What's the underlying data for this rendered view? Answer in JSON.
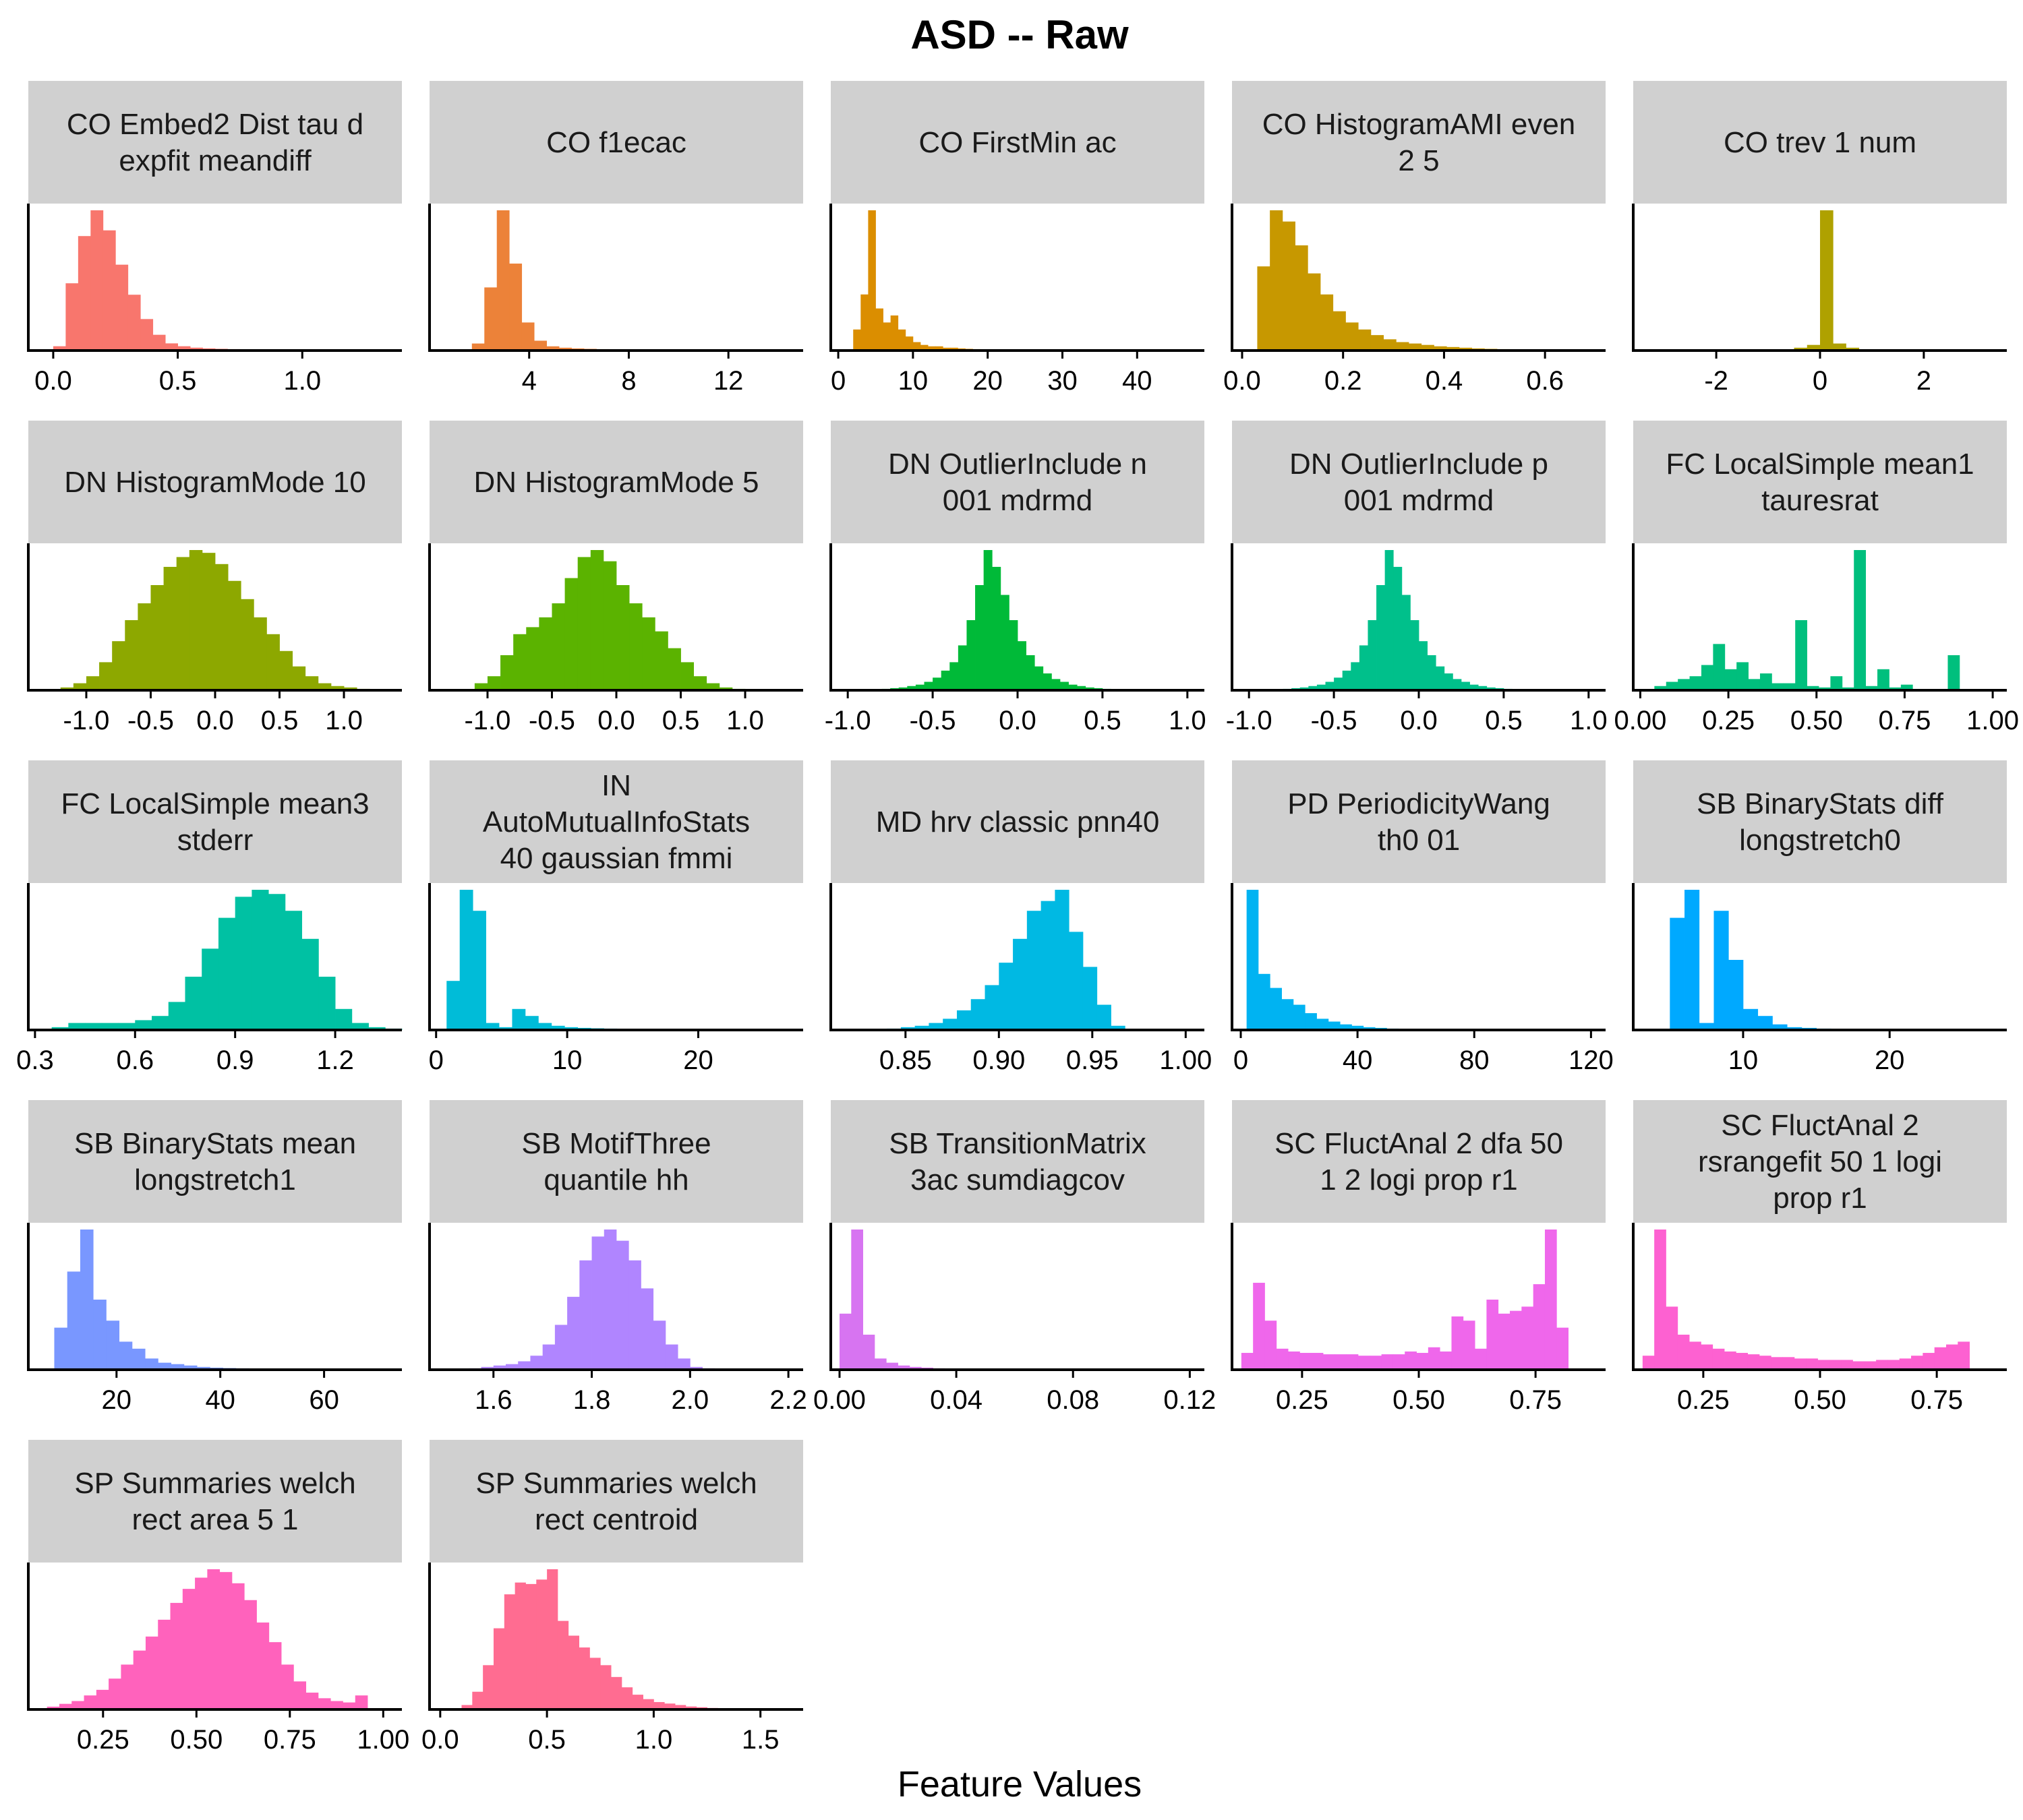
{
  "title": "ASD -- Raw",
  "xlabel": "Feature Values",
  "chart_data": [
    {
      "type": "bar",
      "strip": [
        "CO Embed2 Dist tau d",
        "expfit meandiff"
      ],
      "color": "#F8766D",
      "xlim": [
        -0.1,
        1.4
      ],
      "ticks": [
        0,
        0.5,
        1
      ],
      "tick_labels": [
        "0.0",
        "0.5",
        "1.0"
      ],
      "bins_start": 0,
      "bin_width": 0.05,
      "values": [
        0.03,
        0.47,
        0.8,
        0.98,
        0.84,
        0.6,
        0.39,
        0.22,
        0.11,
        0.05,
        0.03,
        0.02,
        0.015,
        0.012,
        0.01,
        0.008,
        0.006,
        0.005,
        0.004,
        0.003,
        0.002,
        0.002
      ]
    },
    {
      "type": "bar",
      "strip": [
        "CO f1ecac"
      ],
      "color": "#EC8239",
      "xlim": [
        0,
        15
      ],
      "ticks": [
        4,
        8,
        12
      ],
      "tick_labels": [
        "4",
        "8",
        "12"
      ],
      "bins_start": 1.7,
      "bin_width": 0.5,
      "values": [
        0.05,
        0.45,
        1,
        0.62,
        0.2,
        0.07,
        0.03,
        0.02,
        0.015,
        0.012,
        0.01,
        0.008,
        0.007,
        0.006,
        0.005,
        0.004,
        0.004,
        0.003,
        0.003,
        0.002,
        0.002,
        0.002
      ]
    },
    {
      "type": "bar",
      "strip": [
        "CO FirstMin ac"
      ],
      "color": "#DB8E00",
      "xlim": [
        -1,
        49
      ],
      "ticks": [
        0,
        10,
        20,
        30,
        40
      ],
      "tick_labels": [
        "0",
        "10",
        "20",
        "30",
        "40"
      ],
      "bins_start": 2,
      "bin_width": 1,
      "values": [
        0.15,
        0.4,
        1,
        0.3,
        0.2,
        0.25,
        0.15,
        0.1,
        0.06,
        0.04,
        0.03,
        0.03,
        0.02,
        0.02,
        0.015,
        0.012,
        0.01,
        0.008,
        0.007,
        0.006,
        0.005,
        0.004,
        0.003,
        0.003,
        0.002
      ]
    },
    {
      "type": "bar",
      "strip": [
        "CO HistogramAMI even",
        "2 5"
      ],
      "color": "#C79800",
      "xlim": [
        -0.02,
        0.72
      ],
      "ticks": [
        0,
        0.2,
        0.4,
        0.6
      ],
      "tick_labels": [
        "0.0",
        "0.2",
        "0.4",
        "0.6"
      ],
      "bins_start": 0.03,
      "bin_width": 0.025,
      "values": [
        0.6,
        1,
        0.92,
        0.75,
        0.55,
        0.4,
        0.28,
        0.2,
        0.15,
        0.11,
        0.08,
        0.06,
        0.05,
        0.04,
        0.03,
        0.025,
        0.02,
        0.015,
        0.012,
        0.01,
        0.008,
        0.006,
        0.005,
        0.004,
        0.003,
        0.002
      ]
    },
    {
      "type": "bar",
      "strip": [
        "CO trev 1 num"
      ],
      "color": "#AFA100",
      "xlim": [
        -3.6,
        3.6
      ],
      "ticks": [
        -2,
        0,
        2
      ],
      "tick_labels": [
        "-2",
        "0",
        "2"
      ],
      "bins_start": -0.5,
      "bin_width": 0.25,
      "values": [
        0.02,
        0.04,
        1,
        0.05,
        0.02
      ]
    },
    {
      "type": "bar",
      "strip": [
        "DN HistogramMode 10"
      ],
      "color": "#8DA800",
      "xlim": [
        -1.45,
        1.45
      ],
      "ticks": [
        -1,
        -0.5,
        0,
        0.5,
        1
      ],
      "tick_labels": [
        "-1.0",
        "-0.5",
        "0.0",
        "0.5",
        "1.0"
      ],
      "bins_start": -1.2,
      "bin_width": 0.1,
      "values": [
        0.02,
        0.05,
        0.1,
        0.2,
        0.35,
        0.5,
        0.62,
        0.75,
        0.88,
        0.95,
        1,
        0.98,
        0.9,
        0.78,
        0.65,
        0.52,
        0.4,
        0.28,
        0.17,
        0.1,
        0.05,
        0.03,
        0.02,
        0.01
      ]
    },
    {
      "type": "bar",
      "strip": [
        "DN HistogramMode 5"
      ],
      "color": "#5BB300",
      "xlim": [
        -1.45,
        1.45
      ],
      "ticks": [
        -1,
        -0.5,
        0,
        0.5,
        1
      ],
      "tick_labels": [
        "-1.0",
        "-0.5",
        "0.0",
        "0.5",
        "1.0"
      ],
      "bins_start": -1.1,
      "bin_width": 0.1,
      "values": [
        0.05,
        0.1,
        0.25,
        0.4,
        0.45,
        0.52,
        0.62,
        0.8,
        0.95,
        1,
        0.92,
        0.75,
        0.62,
        0.52,
        0.42,
        0.3,
        0.2,
        0.1,
        0.05,
        0.02,
        0.01
      ]
    },
    {
      "type": "bar",
      "strip": [
        "DN OutlierInclude n",
        "001 mdrmd"
      ],
      "color": "#00BA38",
      "xlim": [
        -1.1,
        1.1
      ],
      "ticks": [
        -1,
        -0.5,
        0,
        0.5,
        1
      ],
      "tick_labels": [
        "-1.0",
        "-0.5",
        "0.0",
        "0.5",
        "1.0"
      ],
      "bins_start": -1,
      "bin_width": 0.05,
      "values": [
        0.005,
        0.005,
        0.006,
        0.008,
        0.01,
        0.015,
        0.02,
        0.03,
        0.04,
        0.06,
        0.09,
        0.14,
        0.2,
        0.32,
        0.5,
        0.75,
        1,
        0.88,
        0.68,
        0.5,
        0.35,
        0.25,
        0.17,
        0.12,
        0.08,
        0.06,
        0.04,
        0.03,
        0.02,
        0.015,
        0.01,
        0.008,
        0.006,
        0.005,
        0.004,
        0.003,
        0.002,
        0.002,
        0.002,
        0.001
      ]
    },
    {
      "type": "bar",
      "strip": [
        "DN OutlierInclude p",
        "001 mdrmd"
      ],
      "color": "#00C08B",
      "xlim": [
        -1.1,
        1.1
      ],
      "ticks": [
        -1,
        -0.5,
        0,
        0.5,
        1
      ],
      "tick_labels": [
        "-1.0",
        "-0.5",
        "0.0",
        "0.5",
        "1.0"
      ],
      "bins_start": -1,
      "bin_width": 0.05,
      "values": [
        0.005,
        0.005,
        0.006,
        0.008,
        0.01,
        0.015,
        0.02,
        0.03,
        0.04,
        0.06,
        0.09,
        0.14,
        0.2,
        0.32,
        0.5,
        0.75,
        1,
        0.88,
        0.68,
        0.5,
        0.35,
        0.25,
        0.17,
        0.12,
        0.08,
        0.06,
        0.04,
        0.03,
        0.02,
        0.015,
        0.01,
        0.008,
        0.006,
        0.005,
        0.004,
        0.003,
        0.002,
        0.002,
        0.002,
        0.001
      ]
    },
    {
      "type": "bar",
      "strip": [
        "FC LocalSimple mean1",
        "tauresrat"
      ],
      "color": "#00BF7D",
      "xlim": [
        -0.02,
        1.04
      ],
      "ticks": [
        0,
        0.25,
        0.5,
        0.75,
        1
      ],
      "tick_labels": [
        "0.00",
        "0.25",
        "0.50",
        "0.75",
        "1.00"
      ],
      "bins_start": 0.04,
      "bin_width": 0.0333,
      "values": [
        0.03,
        0.06,
        0.08,
        0.1,
        0.18,
        0.33,
        0.15,
        0.2,
        0.08,
        0.12,
        0.05,
        0.05,
        0.5,
        0.03,
        0.02,
        0.1,
        0.02,
        1,
        0.03,
        0.15,
        0.02,
        0.04,
        0,
        0,
        0,
        0.25
      ]
    },
    {
      "type": "bar",
      "strip": [
        "FC LocalSimple mean3",
        "stderr"
      ],
      "color": "#00C1A3",
      "xlim": [
        0.28,
        1.4
      ],
      "ticks": [
        0.3,
        0.6,
        0.9,
        1.2
      ],
      "tick_labels": [
        "0.3",
        "0.6",
        "0.9",
        "1.2"
      ],
      "bins_start": 0.35,
      "bin_width": 0.05,
      "values": [
        0.02,
        0.05,
        0.05,
        0.05,
        0.05,
        0.07,
        0.1,
        0.2,
        0.38,
        0.58,
        0.8,
        0.95,
        1,
        0.97,
        0.85,
        0.65,
        0.38,
        0.15,
        0.05,
        0.02,
        0.01
      ]
    },
    {
      "type": "bar",
      "strip": [
        "IN",
        "AutoMutualInfoStats",
        "40 gaussian fmmi"
      ],
      "color": "#00BCD8",
      "xlim": [
        -0.5,
        28
      ],
      "ticks": [
        0,
        10,
        20
      ],
      "tick_labels": [
        "0",
        "10",
        "20"
      ],
      "bins_start": 0.8,
      "bin_width": 1,
      "values": [
        0.35,
        1,
        0.85,
        0.05,
        0.02,
        0.15,
        0.1,
        0.05,
        0.03,
        0.02,
        0.015,
        0.012,
        0.01,
        0.008,
        0.006,
        0.005,
        0.004,
        0.003,
        0.002,
        0.002
      ]
    },
    {
      "type": "bar",
      "strip": [
        "MD hrv classic pnn40"
      ],
      "color": "#00B9E3",
      "xlim": [
        0.81,
        1.01
      ],
      "ticks": [
        0.85,
        0.9,
        0.95,
        1
      ],
      "tick_labels": [
        "0.85",
        "0.90",
        "0.95",
        "1.00"
      ],
      "bins_start": 0.84,
      "bin_width": 0.0075,
      "values": [
        0.01,
        0.02,
        0.03,
        0.05,
        0.08,
        0.14,
        0.22,
        0.32,
        0.48,
        0.65,
        0.85,
        0.92,
        1,
        0.7,
        0.45,
        0.18,
        0.03
      ]
    },
    {
      "type": "bar",
      "strip": [
        "PD PeriodicityWang",
        "th0 01"
      ],
      "color": "#00B3F2",
      "xlim": [
        -3,
        125
      ],
      "ticks": [
        0,
        40,
        80,
        120
      ],
      "tick_labels": [
        "0",
        "40",
        "80",
        "120"
      ],
      "bins_start": 2,
      "bin_width": 4,
      "values": [
        1,
        0.4,
        0.3,
        0.22,
        0.18,
        0.12,
        0.08,
        0.06,
        0.04,
        0.03,
        0.02,
        0.015,
        0.01,
        0.008,
        0.006,
        0.005,
        0.004,
        0.003,
        0.002
      ]
    },
    {
      "type": "bar",
      "strip": [
        "SB BinaryStats diff",
        "longstretch0"
      ],
      "color": "#00A9FF",
      "xlim": [
        2.5,
        28
      ],
      "ticks": [
        10,
        20
      ],
      "tick_labels": [
        "10",
        "20"
      ],
      "bins_start": 5,
      "bin_width": 1,
      "values": [
        0.8,
        1,
        0.05,
        0.85,
        0.5,
        0.15,
        0.1,
        0.04,
        0.02,
        0.015,
        0.01,
        0.008,
        0.006,
        0.005,
        0.004,
        0.003
      ]
    },
    {
      "type": "bar",
      "strip": [
        "SB BinaryStats mean",
        "longstretch1"
      ],
      "color": "#7997FF",
      "xlim": [
        3,
        75
      ],
      "ticks": [
        20,
        40,
        60
      ],
      "tick_labels": [
        "20",
        "40",
        "60"
      ],
      "bins_start": 8,
      "bin_width": 2.5,
      "values": [
        0.3,
        0.7,
        1,
        0.5,
        0.35,
        0.2,
        0.15,
        0.08,
        0.05,
        0.04,
        0.03,
        0.02,
        0.015,
        0.012,
        0.01,
        0.008,
        0.006,
        0.005,
        0.004,
        0.003
      ]
    },
    {
      "type": "bar",
      "strip": [
        "SB MotifThree",
        "quantile hh"
      ],
      "color": "#B085FF",
      "xlim": [
        1.47,
        2.23
      ],
      "ticks": [
        1.6,
        1.8,
        2,
        2.2
      ],
      "tick_labels": [
        "1.6",
        "1.8",
        "2.0",
        "2.2"
      ],
      "bins_start": 1.55,
      "bin_width": 0.025,
      "values": [
        0.01,
        0.02,
        0.03,
        0.04,
        0.06,
        0.1,
        0.18,
        0.32,
        0.52,
        0.78,
        0.95,
        1,
        0.92,
        0.78,
        0.58,
        0.35,
        0.18,
        0.08,
        0.02,
        0.01
      ]
    },
    {
      "type": "bar",
      "strip": [
        "SB TransitionMatrix",
        "3ac sumdiagcov"
      ],
      "color": "#D774F1",
      "xlim": [
        -0.003,
        0.125
      ],
      "ticks": [
        0,
        0.04,
        0.08,
        0.12
      ],
      "tick_labels": [
        "0.00",
        "0.04",
        "0.08",
        "0.12"
      ],
      "bins_start": 0,
      "bin_width": 0.004,
      "values": [
        0.4,
        1,
        0.25,
        0.08,
        0.05,
        0.03,
        0.02,
        0.015,
        0.01,
        0.008,
        0.006,
        0.005,
        0.004,
        0.003,
        0.002
      ]
    },
    {
      "type": "bar",
      "strip": [
        "SC FluctAnal 2 dfa 50",
        "1 2 logi prop r1"
      ],
      "color": "#EF67EB",
      "xlim": [
        0.1,
        0.9
      ],
      "ticks": [
        0.25,
        0.5,
        0.75
      ],
      "tick_labels": [
        "0.25",
        "0.50",
        "0.75"
      ],
      "bins_start": 0.12,
      "bin_width": 0.025,
      "values": [
        0.12,
        0.62,
        0.35,
        0.15,
        0.13,
        0.12,
        0.12,
        0.11,
        0.11,
        0.11,
        0.1,
        0.1,
        0.11,
        0.11,
        0.13,
        0.12,
        0.16,
        0.13,
        0.38,
        0.35,
        0.15,
        0.5,
        0.4,
        0.42,
        0.45,
        0.61,
        1,
        0.3
      ]
    },
    {
      "type": "bar",
      "strip": [
        "SC FluctAnal 2",
        "rsrangefit 50 1 logi",
        "prop r1"
      ],
      "color": "#FD61D1",
      "xlim": [
        0.1,
        0.9
      ],
      "ticks": [
        0.25,
        0.5,
        0.75
      ],
      "tick_labels": [
        "0.25",
        "0.50",
        "0.75"
      ],
      "bins_start": 0.12,
      "bin_width": 0.025,
      "values": [
        0.1,
        1,
        0.45,
        0.25,
        0.2,
        0.18,
        0.15,
        0.13,
        0.12,
        0.11,
        0.1,
        0.09,
        0.09,
        0.08,
        0.08,
        0.07,
        0.07,
        0.07,
        0.06,
        0.06,
        0.07,
        0.07,
        0.08,
        0.1,
        0.12,
        0.16,
        0.18,
        0.2
      ]
    },
    {
      "type": "bar",
      "strip": [
        "SP Summaries welch",
        "rect area 5 1"
      ],
      "color": "#FF62BC",
      "xlim": [
        0.05,
        1.05
      ],
      "ticks": [
        0.25,
        0.5,
        0.75,
        1
      ],
      "tick_labels": [
        "0.25",
        "0.50",
        "0.75",
        "1.00"
      ],
      "bins_start": 0.1,
      "bin_width": 0.033,
      "values": [
        0.02,
        0.04,
        0.06,
        0.1,
        0.14,
        0.22,
        0.32,
        0.42,
        0.52,
        0.64,
        0.76,
        0.86,
        0.94,
        1,
        0.98,
        0.9,
        0.78,
        0.62,
        0.48,
        0.32,
        0.2,
        0.12,
        0.08,
        0.06,
        0.05,
        0.1
      ]
    },
    {
      "type": "bar",
      "strip": [
        "SP Summaries welch",
        "rect centroid"
      ],
      "color": "#FF6C91",
      "xlim": [
        -0.05,
        1.7
      ],
      "ticks": [
        0,
        0.5,
        1,
        1.5
      ],
      "tick_labels": [
        "0.0",
        "0.5",
        "1.0",
        "1.5"
      ],
      "bins_start": 0.1,
      "bin_width": 0.05,
      "values": [
        0.03,
        0.12,
        0.3,
        0.55,
        0.78,
        0.86,
        0.85,
        0.88,
        0.95,
        0.6,
        0.5,
        0.42,
        0.35,
        0.3,
        0.22,
        0.15,
        0.1,
        0.07,
        0.05,
        0.04,
        0.03,
        0.02,
        0.015,
        0.01,
        0.008,
        0.005
      ]
    }
  ]
}
